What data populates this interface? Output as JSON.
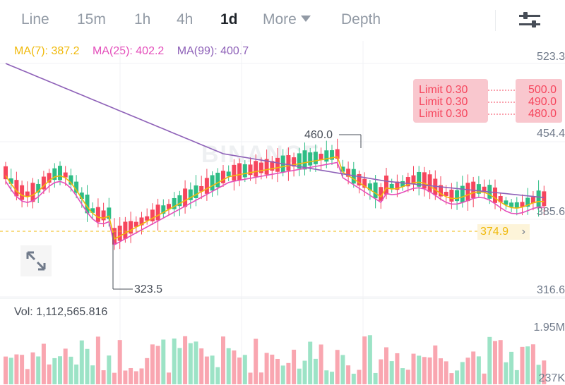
{
  "tabs": [
    {
      "label": "Line"
    },
    {
      "label": "15m"
    },
    {
      "label": "1h"
    },
    {
      "label": "4h"
    },
    {
      "label": "1d",
      "active": true
    },
    {
      "label": "More"
    },
    {
      "label": "Depth"
    }
  ],
  "icons": {
    "settings": "sliders-icon",
    "expand": "expand-arrows-icon",
    "current_price_arrow": "chevron-right-icon"
  },
  "watermark": "BINANCE",
  "ma": {
    "ma7": "MA(7): 387.2",
    "ma25": "MA(25): 402.2",
    "ma99": "MA(99): 400.7"
  },
  "limit_orders": [
    {
      "label": "Limit  0.30",
      "price": "500.0"
    },
    {
      "label": "Limit  0.30",
      "price": "490.0"
    },
    {
      "label": "Limit  0.30",
      "price": "480.0"
    }
  ],
  "axis": {
    "top": "523.3",
    "p454": "454.4",
    "p385": "385.6",
    "low": "316.6",
    "vol_top": "1.95M",
    "vol_bottom": "237K"
  },
  "annotations": {
    "high": "460.0",
    "low": "323.5"
  },
  "current_price": "374.9",
  "volume_label": "Vol: 1,112,565.816",
  "colors": {
    "up": "#2ebd85",
    "down": "#f6465d",
    "vol_up": "#9ce3c6",
    "vol_down": "#f9a6b0",
    "ma7": "#f0b90b",
    "ma25": "#e44ebb",
    "ma99": "#8e61b8"
  }
}
